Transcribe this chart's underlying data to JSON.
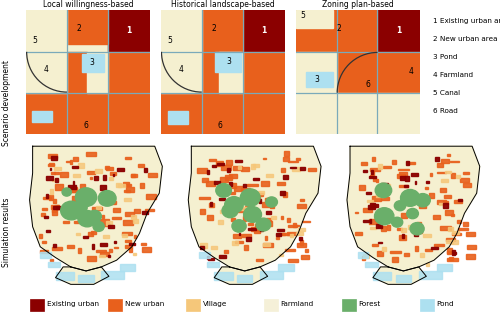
{
  "title_col1": "Local willingness-based",
  "title_col2": "Historical landscape-based",
  "title_col3": "Zoning plan-based",
  "row_label1": "Scenario development",
  "row_label2": "Simulation results",
  "legend_items": [
    {
      "label": "Existing urban",
      "color": "#8B0000"
    },
    {
      "label": "New urban",
      "color": "#E8601C"
    },
    {
      "label": "Village",
      "color": "#F5C77A"
    },
    {
      "label": "Farmland",
      "color": "#F5F0D8"
    },
    {
      "label": "Forest",
      "color": "#6AAF6A"
    },
    {
      "label": "Pond",
      "color": "#ADE0F0"
    }
  ],
  "scenario_legend": [
    "1 Existing urban area",
    "2 New urban area",
    "3 Pond",
    "4 Farmland",
    "5 Canal",
    "6 Road"
  ],
  "colors": {
    "existing_urban": "#8B0000",
    "new_urban": "#E8601C",
    "farmland": "#F5F0D0",
    "pond": "#ADE0F0",
    "grid_line": "#7aaaba",
    "background": "#F5F0D0"
  },
  "fig_bg": "#FFFFFF"
}
